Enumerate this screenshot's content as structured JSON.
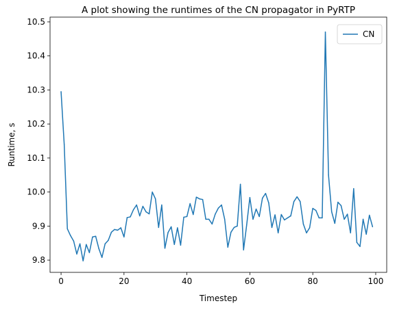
{
  "chart_data": {
    "type": "line",
    "title": "A plot showing the runtimes of the CN propagator in PyRTP",
    "xlabel": "Timestep",
    "ylabel": "Runtime, s",
    "xlim": [
      -3.5,
      103.5
    ],
    "ylim": [
      9.764,
      10.514
    ],
    "xticks": [
      0,
      20,
      40,
      60,
      80,
      100
    ],
    "yticks": [
      9.8,
      9.9,
      10.0,
      10.1,
      10.2,
      10.3,
      10.4,
      10.5
    ],
    "ytick_labels": [
      "9.8",
      "9.9",
      "10.0",
      "10.1",
      "10.2",
      "10.3",
      "10.4",
      "10.5"
    ],
    "grid": false,
    "legend_position": "top-right",
    "series": [
      {
        "name": "CN",
        "color": "#1f77b4",
        "x": [
          0,
          1,
          2,
          3,
          4,
          5,
          6,
          7,
          8,
          9,
          10,
          11,
          12,
          13,
          14,
          15,
          16,
          17,
          18,
          19,
          20,
          21,
          22,
          23,
          24,
          25,
          26,
          27,
          28,
          29,
          30,
          31,
          32,
          33,
          34,
          35,
          36,
          37,
          38,
          39,
          40,
          41,
          42,
          43,
          44,
          45,
          46,
          47,
          48,
          49,
          50,
          51,
          52,
          53,
          54,
          55,
          56,
          57,
          58,
          59,
          60,
          61,
          62,
          63,
          64,
          65,
          66,
          67,
          68,
          69,
          70,
          71,
          72,
          73,
          74,
          75,
          76,
          77,
          78,
          79,
          80,
          81,
          82,
          83,
          84,
          85,
          86,
          87,
          88,
          89,
          90,
          91,
          92,
          93,
          94,
          95,
          96,
          97,
          98,
          99
        ],
        "values": [
          10.295,
          10.14,
          9.892,
          9.872,
          9.856,
          9.818,
          9.848,
          9.798,
          9.846,
          9.822,
          9.868,
          9.87,
          9.834,
          9.808,
          9.848,
          9.858,
          9.882,
          9.89,
          9.888,
          9.895,
          9.868,
          9.925,
          9.927,
          9.948,
          9.962,
          9.93,
          9.958,
          9.942,
          9.936,
          10.0,
          9.98,
          9.896,
          9.962,
          9.835,
          9.881,
          9.898,
          9.846,
          9.895,
          9.844,
          9.926,
          9.928,
          9.966,
          9.934,
          9.985,
          9.98,
          9.978,
          9.92,
          9.92,
          9.906,
          9.935,
          9.953,
          9.962,
          9.92,
          9.838,
          9.882,
          9.896,
          9.9,
          10.023,
          9.83,
          9.904,
          9.984,
          9.92,
          9.95,
          9.928,
          9.982,
          9.996,
          9.968,
          9.896,
          9.933,
          9.88,
          9.934,
          9.918,
          9.924,
          9.93,
          9.972,
          9.986,
          9.972,
          9.906,
          9.88,
          9.895,
          9.952,
          9.946,
          9.924,
          9.924,
          10.47,
          10.05,
          9.942,
          9.908,
          9.97,
          9.96,
          9.92,
          9.935,
          9.88,
          10.01,
          9.852,
          9.84,
          9.92,
          9.876,
          9.932,
          9.898
        ]
      }
    ]
  }
}
